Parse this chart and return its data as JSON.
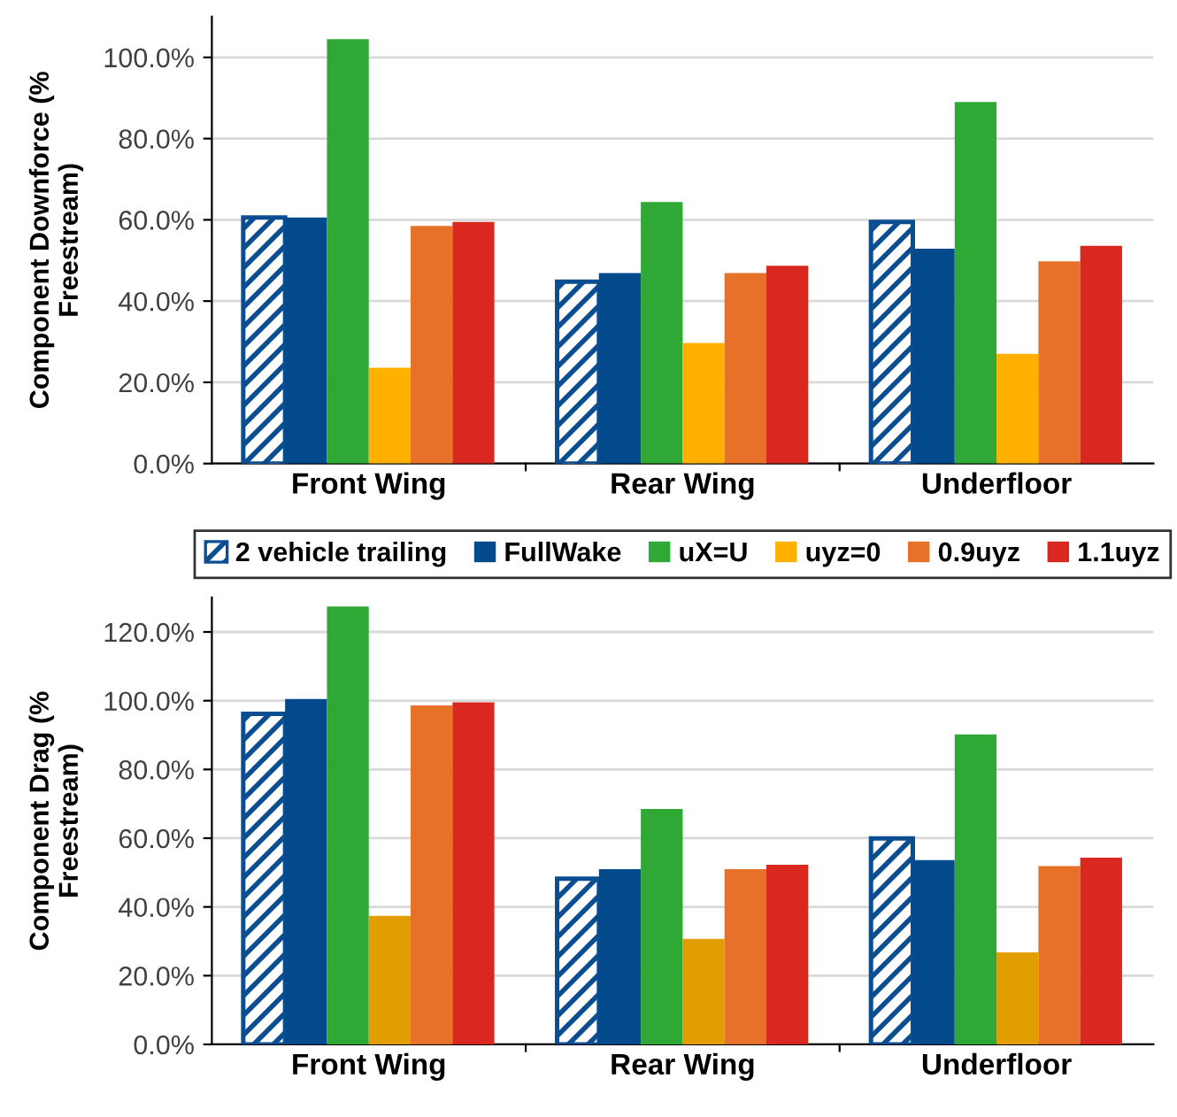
{
  "chart_data": [
    {
      "type": "bar",
      "ylabel": "Component Downforce (%\nFreestream)",
      "categories": [
        "Front Wing",
        "Rear Wing",
        "Underfloor"
      ],
      "series": [
        {
          "name": "2 vehicle trailing",
          "color": "#0b4d91",
          "values": [
            60.6,
            44.8,
            59.5
          ]
        },
        {
          "name": "FullWake",
          "color": "#024a8c",
          "values": [
            60.6,
            46.9,
            52.9
          ]
        },
        {
          "name": "uX=U",
          "color": "#2fa836",
          "values": [
            104.5,
            64.4,
            89.0
          ]
        },
        {
          "name": "uyz=0",
          "color": "#ffb000",
          "values": [
            23.6,
            29.7,
            27.0
          ]
        },
        {
          "name": "0.9uyz",
          "color": "#e8712a",
          "values": [
            58.5,
            46.9,
            49.8
          ]
        },
        {
          "name": "1.1uyz",
          "color": "#d9281f",
          "values": [
            59.5,
            48.7,
            53.6
          ]
        }
      ],
      "ylim": [
        0,
        110
      ],
      "yticks": [
        {
          "value": 0,
          "label": "0.0%"
        },
        {
          "value": 20,
          "label": "20.0%"
        },
        {
          "value": 40,
          "label": "40.0%"
        },
        {
          "value": 60,
          "label": "60.0%"
        },
        {
          "value": 80,
          "label": "80.0%"
        },
        {
          "value": 100,
          "label": "100.0%"
        }
      ],
      "grid": "y",
      "legend": "bottom"
    },
    {
      "type": "bar",
      "ylabel": "Component Drag (%\nFreestream)",
      "categories": [
        "Front Wing",
        "Rear Wing",
        "Underfloor"
      ],
      "series": [
        {
          "color": "#0b4d91",
          "values": [
            96.2,
            48.2,
            59.9
          ]
        },
        {
          "color": "#024a8c",
          "values": [
            100.5,
            51.0,
            53.6
          ]
        },
        {
          "color": "#2fa836",
          "values": [
            127.4,
            68.5,
            90.2
          ]
        },
        {
          "color": "#e29e00",
          "values": [
            37.4,
            30.7,
            26.8
          ]
        },
        {
          "color": "#e8712a",
          "values": [
            98.6,
            51.0,
            51.9
          ]
        },
        {
          "color": "#d9281f",
          "values": [
            99.5,
            52.3,
            54.3
          ]
        }
      ],
      "ylim": [
        0,
        130
      ],
      "yticks": [
        {
          "value": 0,
          "label": "0.0%"
        },
        {
          "value": 20,
          "label": "20.0%"
        },
        {
          "value": 40,
          "label": "40.0%"
        },
        {
          "value": 60,
          "label": "60.0%"
        },
        {
          "value": 80,
          "label": "80.0%"
        },
        {
          "value": 100,
          "label": "100.0%"
        },
        {
          "value": 120,
          "label": "120.0%"
        }
      ],
      "grid": "y"
    }
  ]
}
